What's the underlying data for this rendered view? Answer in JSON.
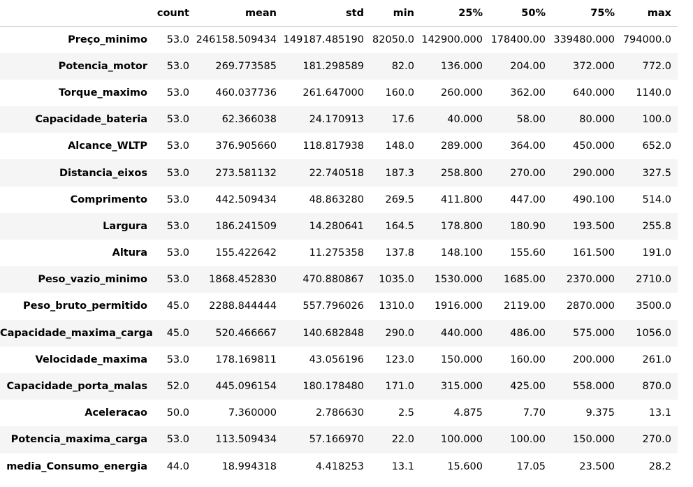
{
  "table": {
    "corner": "",
    "columns": [
      "count",
      "mean",
      "std",
      "min",
      "25%",
      "50%",
      "75%",
      "max"
    ],
    "rows": [
      {
        "label": "Preço_minimo",
        "values": [
          "53.0",
          "246158.509434",
          "149187.485190",
          "82050.0",
          "142900.000",
          "178400.00",
          "339480.000",
          "794000.0"
        ]
      },
      {
        "label": "Potencia_motor",
        "values": [
          "53.0",
          "269.773585",
          "181.298589",
          "82.0",
          "136.000",
          "204.00",
          "372.000",
          "772.0"
        ]
      },
      {
        "label": "Torque_maximo",
        "values": [
          "53.0",
          "460.037736",
          "261.647000",
          "160.0",
          "260.000",
          "362.00",
          "640.000",
          "1140.0"
        ]
      },
      {
        "label": "Capacidade_bateria",
        "values": [
          "53.0",
          "62.366038",
          "24.170913",
          "17.6",
          "40.000",
          "58.00",
          "80.000",
          "100.0"
        ]
      },
      {
        "label": "Alcance_WLTP",
        "values": [
          "53.0",
          "376.905660",
          "118.817938",
          "148.0",
          "289.000",
          "364.00",
          "450.000",
          "652.0"
        ]
      },
      {
        "label": "Distancia_eixos",
        "values": [
          "53.0",
          "273.581132",
          "22.740518",
          "187.3",
          "258.800",
          "270.00",
          "290.000",
          "327.5"
        ]
      },
      {
        "label": "Comprimento",
        "values": [
          "53.0",
          "442.509434",
          "48.863280",
          "269.5",
          "411.800",
          "447.00",
          "490.100",
          "514.0"
        ]
      },
      {
        "label": "Largura",
        "values": [
          "53.0",
          "186.241509",
          "14.280641",
          "164.5",
          "178.800",
          "180.90",
          "193.500",
          "255.8"
        ]
      },
      {
        "label": "Altura",
        "values": [
          "53.0",
          "155.422642",
          "11.275358",
          "137.8",
          "148.100",
          "155.60",
          "161.500",
          "191.0"
        ]
      },
      {
        "label": "Peso_vazio_minimo",
        "values": [
          "53.0",
          "1868.452830",
          "470.880867",
          "1035.0",
          "1530.000",
          "1685.00",
          "2370.000",
          "2710.0"
        ]
      },
      {
        "label": "Peso_bruto_permitido",
        "values": [
          "45.0",
          "2288.844444",
          "557.796026",
          "1310.0",
          "1916.000",
          "2119.00",
          "2870.000",
          "3500.0"
        ]
      },
      {
        "label": "Capacidade_maxima_carga",
        "values": [
          "45.0",
          "520.466667",
          "140.682848",
          "290.0",
          "440.000",
          "486.00",
          "575.000",
          "1056.0"
        ]
      },
      {
        "label": "Velocidade_maxima",
        "values": [
          "53.0",
          "178.169811",
          "43.056196",
          "123.0",
          "150.000",
          "160.00",
          "200.000",
          "261.0"
        ]
      },
      {
        "label": "Capacidade_porta_malas",
        "values": [
          "52.0",
          "445.096154",
          "180.178480",
          "171.0",
          "315.000",
          "425.00",
          "558.000",
          "870.0"
        ]
      },
      {
        "label": "Aceleracao",
        "values": [
          "50.0",
          "7.360000",
          "2.786630",
          "2.5",
          "4.875",
          "7.70",
          "9.375",
          "13.1"
        ]
      },
      {
        "label": "Potencia_maxima_carga",
        "values": [
          "53.0",
          "113.509434",
          "57.166970",
          "22.0",
          "100.000",
          "100.00",
          "150.000",
          "270.0"
        ]
      },
      {
        "label": "media_Consumo_energia",
        "values": [
          "44.0",
          "18.994318",
          "4.418253",
          "13.1",
          "15.600",
          "17.05",
          "23.500",
          "28.2"
        ]
      }
    ]
  }
}
